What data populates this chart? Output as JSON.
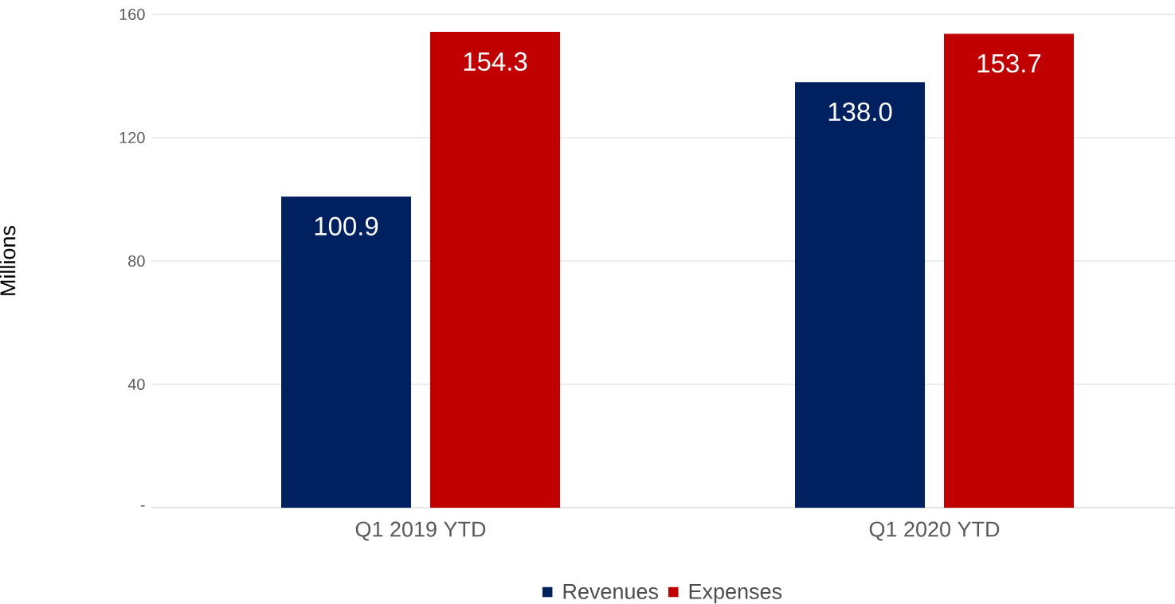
{
  "chart_data": {
    "type": "bar",
    "ylabel": "Millions",
    "categories": [
      "Q1 2019 YTD",
      "Q1 2020 YTD"
    ],
    "series": [
      {
        "name": "Revenues",
        "color": "#002060",
        "values": [
          100.9,
          138.0
        ],
        "value_labels": [
          "100.9",
          "138.0"
        ]
      },
      {
        "name": "Expenses",
        "color": "#c00000",
        "values": [
          154.3,
          153.7
        ],
        "value_labels": [
          "154.3",
          "153.7"
        ]
      }
    ],
    "ylim": [
      0,
      160
    ],
    "yticks": [
      {
        "value": 0,
        "label": "-"
      },
      40,
      80,
      120,
      160
    ],
    "grid": "y",
    "legend": "bottom"
  }
}
